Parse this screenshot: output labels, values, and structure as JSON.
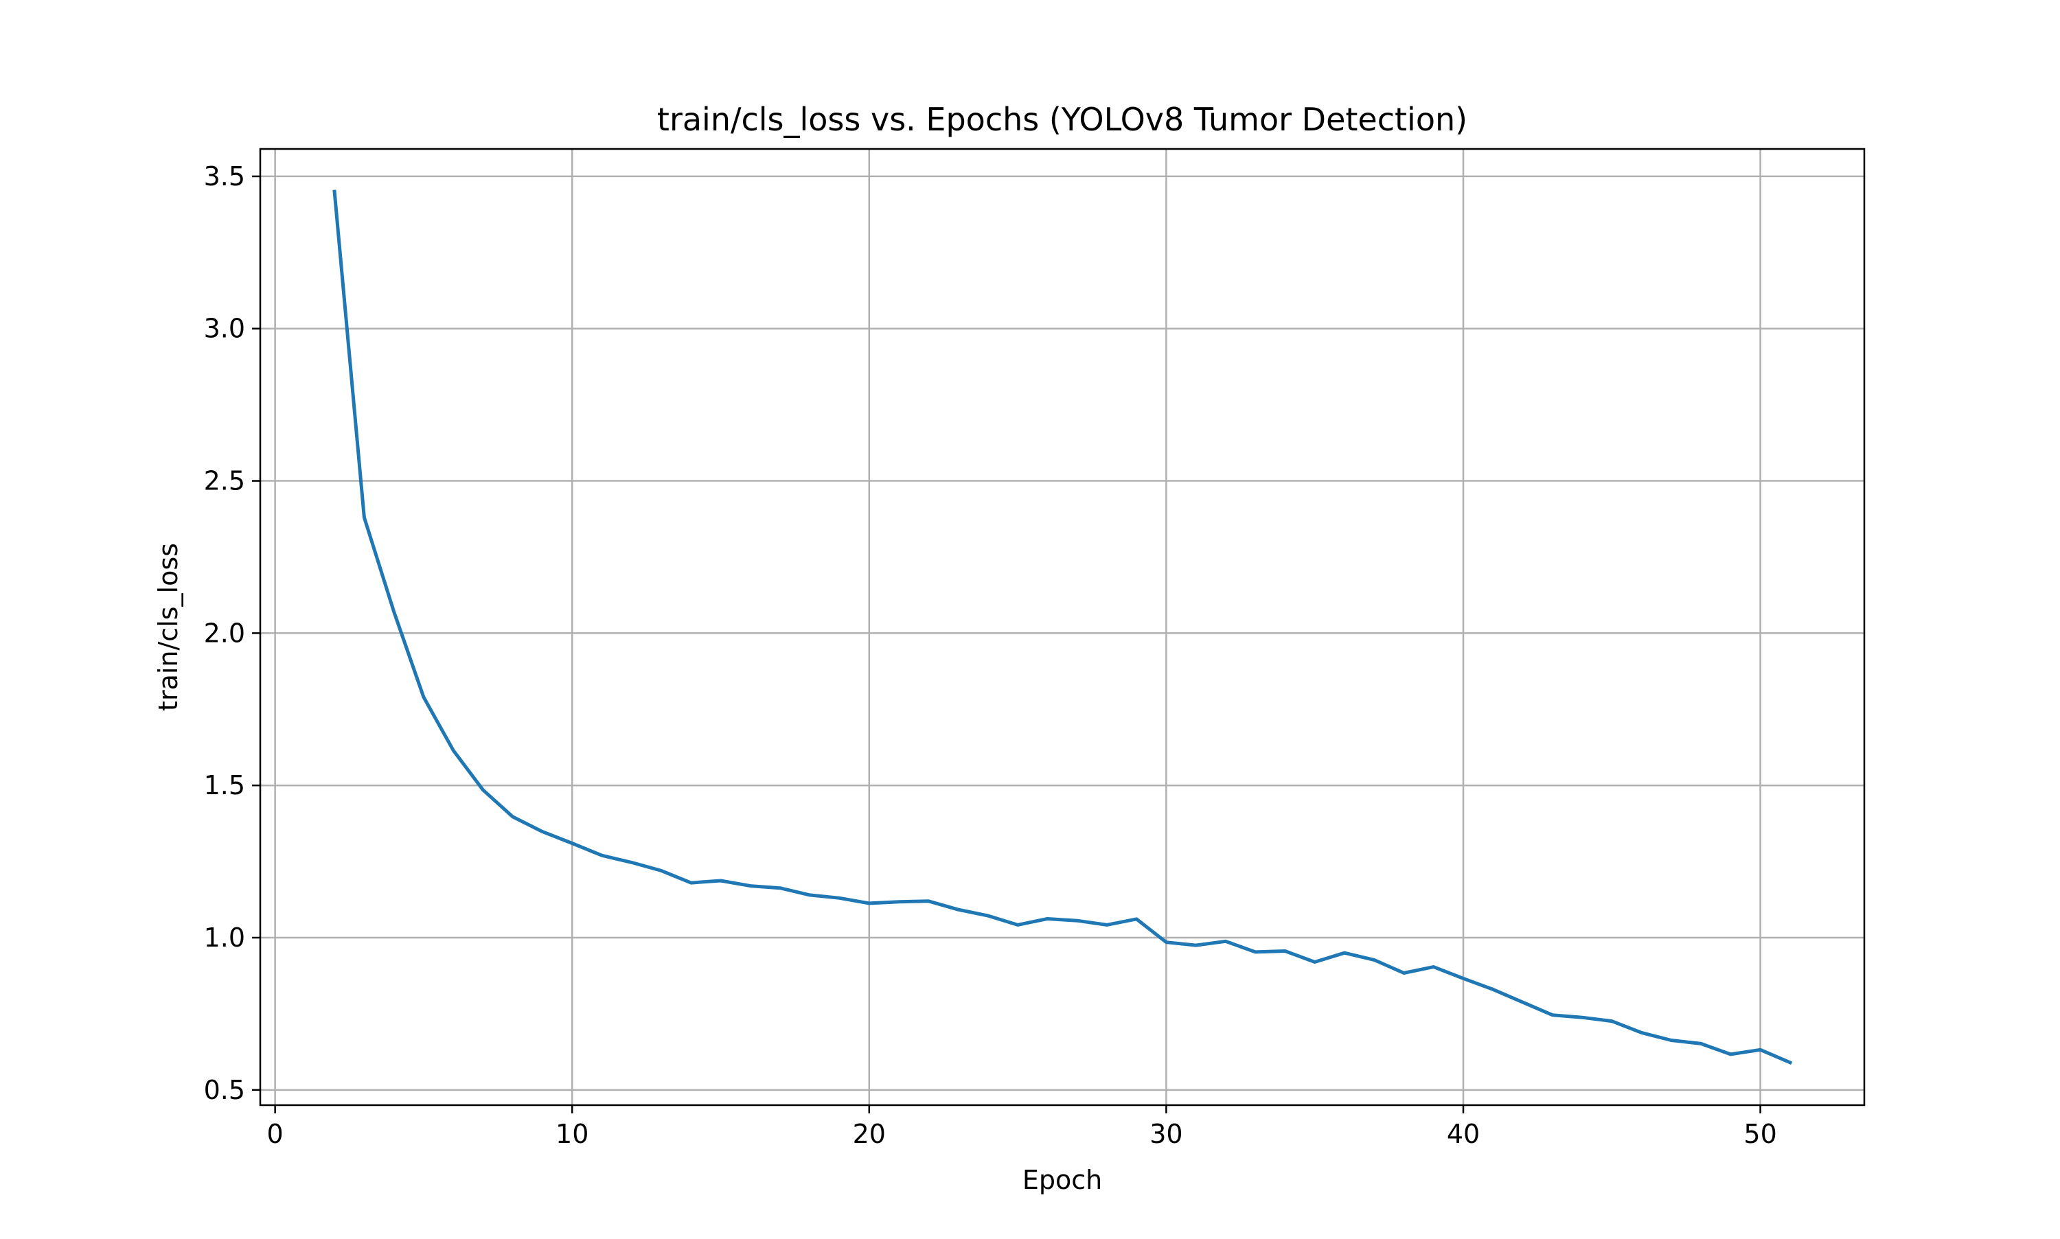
{
  "chart_data": {
    "type": "line",
    "title": "train/cls_loss vs. Epochs (YOLOv8 Tumor Detection)",
    "xlabel": "Epoch",
    "ylabel": "train/cls_loss",
    "xlim": [
      -0.5,
      53.5
    ],
    "ylim": [
      0.45,
      3.59
    ],
    "xticks": [
      0,
      10,
      20,
      30,
      40,
      50
    ],
    "yticks": [
      0.5,
      1.0,
      1.5,
      2.0,
      2.5,
      3.0,
      3.5
    ],
    "grid": true,
    "series": [
      {
        "color": "#1f77b4",
        "x": [
          2,
          3,
          4,
          5,
          6,
          7,
          8,
          9,
          10,
          11,
          12,
          13,
          14,
          15,
          16,
          17,
          18,
          19,
          20,
          21,
          22,
          23,
          24,
          25,
          26,
          27,
          28,
          29,
          30,
          31,
          32,
          33,
          34,
          35,
          36,
          37,
          38,
          39,
          40,
          41,
          42,
          43,
          44,
          45,
          46,
          47,
          48,
          49,
          50,
          51
        ],
        "y": [
          3.45,
          2.38,
          2.07,
          1.79,
          1.615,
          1.485,
          1.397,
          1.348,
          1.31,
          1.27,
          1.247,
          1.22,
          1.18,
          1.187,
          1.17,
          1.163,
          1.14,
          1.13,
          1.113,
          1.118,
          1.12,
          1.092,
          1.072,
          1.042,
          1.062,
          1.056,
          1.042,
          1.061,
          0.985,
          0.975,
          0.988,
          0.953,
          0.956,
          0.92,
          0.95,
          0.927,
          0.884,
          0.904,
          0.866,
          0.83,
          0.788,
          0.746,
          0.738,
          0.726,
          0.688,
          0.663,
          0.652,
          0.617,
          0.632,
          0.59
        ]
      }
    ]
  }
}
